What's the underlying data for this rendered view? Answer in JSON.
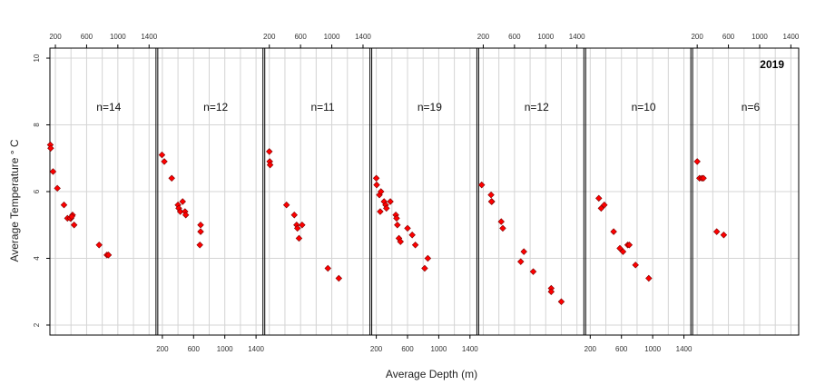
{
  "chart_data": {
    "type": "scatter",
    "xlabel": "Average Depth (m)",
    "ylabel": "Average Temperature ° C",
    "ylim": [
      1.7,
      10.3
    ],
    "xlim": [
      130,
      1500
    ],
    "x_ticks": [
      200,
      600,
      1000,
      1400
    ],
    "y_ticks": [
      2,
      4,
      6,
      8,
      10
    ],
    "grid": true,
    "point_color": "#ff0000",
    "point_outline": "#7a0000",
    "annotation": "2019",
    "panels": [
      {
        "n_label": "n=14",
        "points": [
          [
            135,
            7.4
          ],
          [
            140,
            7.3
          ],
          [
            170,
            6.6
          ],
          [
            225,
            6.1
          ],
          [
            310,
            5.6
          ],
          [
            355,
            5.2
          ],
          [
            400,
            5.2
          ],
          [
            420,
            5.3
          ],
          [
            440,
            5.0
          ],
          [
            390,
            5.2
          ],
          [
            760,
            4.4
          ],
          [
            860,
            4.1
          ],
          [
            880,
            4.1
          ],
          [
            410,
            5.25
          ]
        ]
      },
      {
        "n_label": "n=12",
        "points": [
          [
            195,
            7.1
          ],
          [
            225,
            6.9
          ],
          [
            320,
            6.4
          ],
          [
            400,
            5.6
          ],
          [
            410,
            5.5
          ],
          [
            430,
            5.4
          ],
          [
            460,
            5.7
          ],
          [
            490,
            5.4
          ],
          [
            500,
            5.3
          ],
          [
            690,
            5.0
          ],
          [
            690,
            4.8
          ],
          [
            680,
            4.4
          ]
        ]
      },
      {
        "n_label": "n=11",
        "points": [
          [
            200,
            7.2
          ],
          [
            205,
            6.9
          ],
          [
            210,
            6.8
          ],
          [
            420,
            5.6
          ],
          [
            520,
            5.3
          ],
          [
            550,
            5.0
          ],
          [
            560,
            4.9
          ],
          [
            580,
            4.6
          ],
          [
            620,
            5.0
          ],
          [
            950,
            3.7
          ],
          [
            1090,
            3.4
          ]
        ]
      },
      {
        "n_label": "n=19",
        "points": [
          [
            200,
            6.4
          ],
          [
            205,
            6.2
          ],
          [
            240,
            5.9
          ],
          [
            260,
            6.0
          ],
          [
            300,
            5.7
          ],
          [
            320,
            5.6
          ],
          [
            330,
            5.5
          ],
          [
            380,
            5.7
          ],
          [
            450,
            5.3
          ],
          [
            460,
            5.2
          ],
          [
            470,
            5.0
          ],
          [
            490,
            4.6
          ],
          [
            510,
            4.5
          ],
          [
            600,
            4.9
          ],
          [
            660,
            4.7
          ],
          [
            700,
            4.4
          ],
          [
            820,
            3.7
          ],
          [
            860,
            4.0
          ],
          [
            250,
            5.4
          ]
        ]
      },
      {
        "n_label": "n=12",
        "points": [
          [
            180,
            6.2
          ],
          [
            300,
            5.9
          ],
          [
            310,
            5.7
          ],
          [
            430,
            5.1
          ],
          [
            450,
            4.9
          ],
          [
            680,
            3.9
          ],
          [
            720,
            4.2
          ],
          [
            840,
            3.6
          ],
          [
            1070,
            3.1
          ],
          [
            1070,
            3.0
          ],
          [
            1200,
            2.7
          ],
          [
            305,
            5.7
          ]
        ]
      },
      {
        "n_label": "n=10",
        "points": [
          [
            310,
            5.8
          ],
          [
            340,
            5.5
          ],
          [
            380,
            5.6
          ],
          [
            500,
            4.8
          ],
          [
            580,
            4.3
          ],
          [
            620,
            4.2
          ],
          [
            680,
            4.4
          ],
          [
            700,
            4.4
          ],
          [
            780,
            3.8
          ],
          [
            950,
            3.4
          ]
        ]
      },
      {
        "n_label": "n=6",
        "points": [
          [
            200,
            6.9
          ],
          [
            230,
            6.4
          ],
          [
            260,
            6.4
          ],
          [
            280,
            6.4
          ],
          [
            450,
            4.8
          ],
          [
            540,
            4.7
          ]
        ]
      }
    ]
  }
}
